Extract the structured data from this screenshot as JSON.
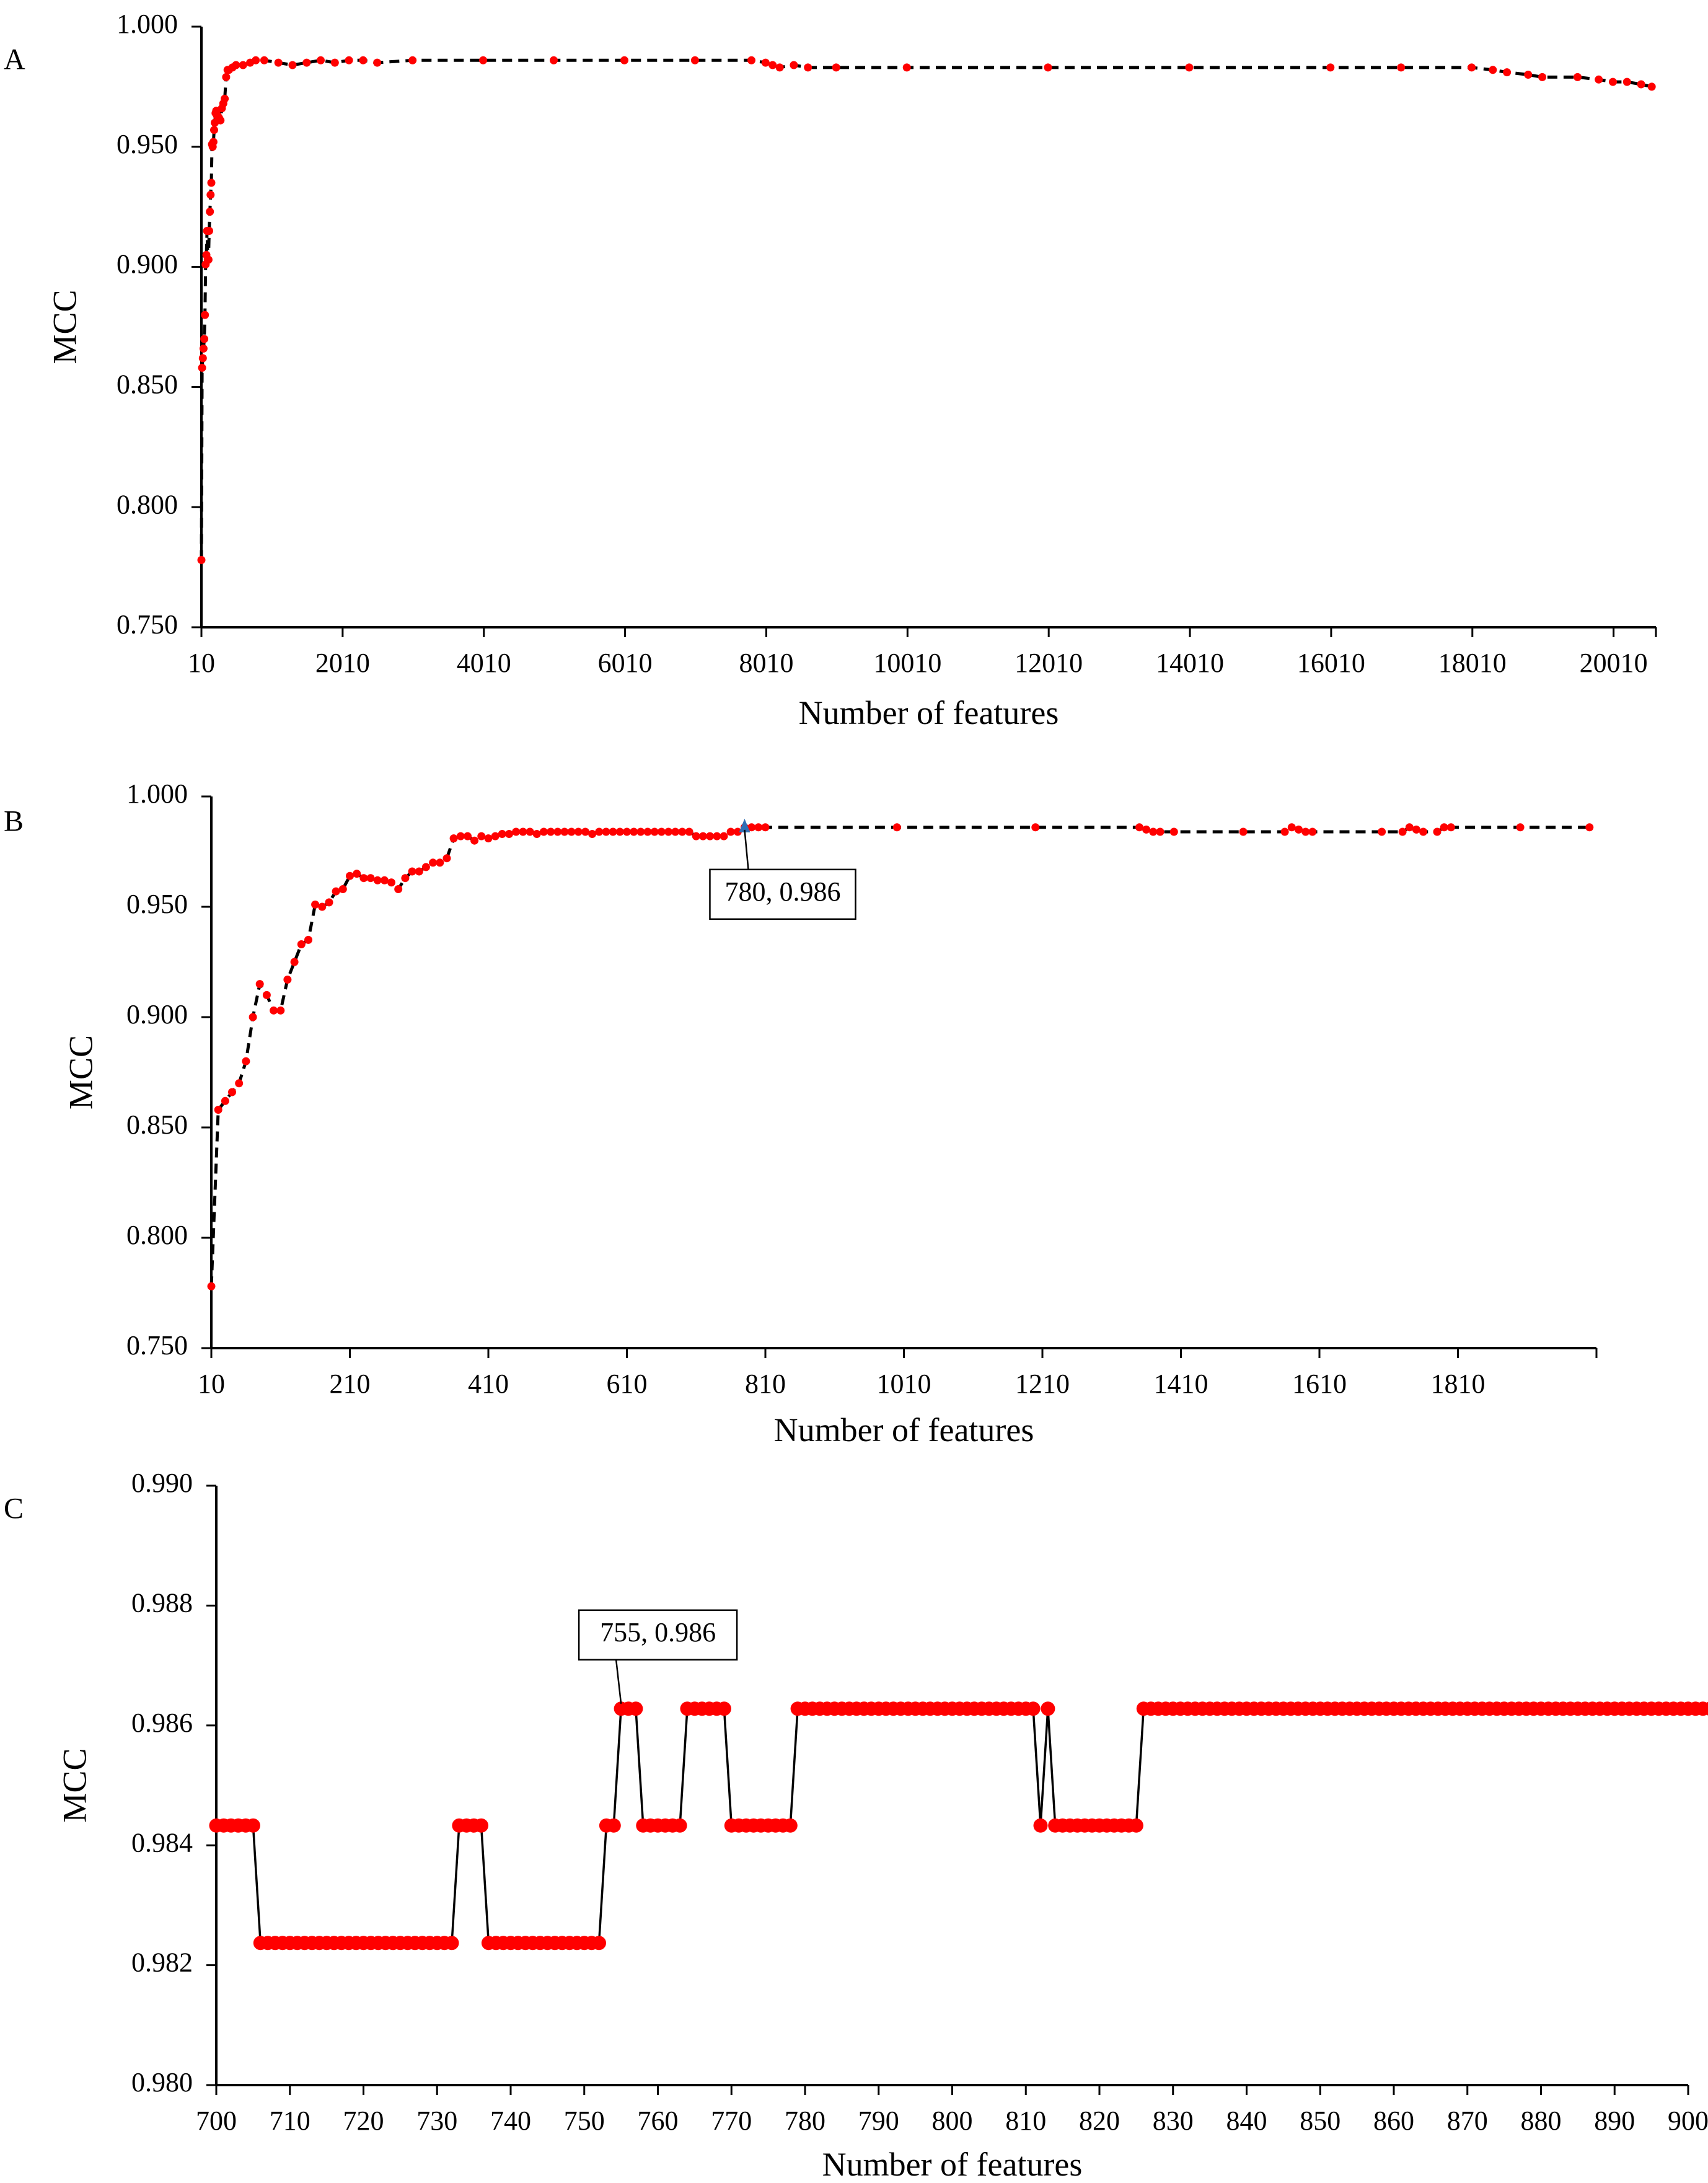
{
  "colors": {
    "points": "#ff0000",
    "line": "#000000",
    "highlight": "#2f6fb5",
    "axis": "#000000"
  },
  "chart_data": [
    {
      "panel": "A",
      "type": "line",
      "marker": "circle",
      "line_style": "dashed",
      "xlabel": "Number of features",
      "ylabel": "MCC",
      "xlim": [
        10,
        20610
      ],
      "ylim": [
        0.75,
        1.0
      ],
      "xticks": [
        10,
        2010,
        4010,
        6010,
        8010,
        10010,
        12010,
        14010,
        16010,
        18010,
        20010
      ],
      "xtick_labels": [
        "10",
        "2010",
        "4010",
        "6010",
        "8010",
        "10010",
        "12010",
        "14010",
        "16010",
        "18010",
        "20010"
      ],
      "yticks": [
        0.75,
        0.8,
        0.85,
        0.9,
        0.95,
        1.0
      ],
      "ytick_labels": [
        "0.750",
        "0.800",
        "0.850",
        "0.900",
        "0.950",
        "1.000"
      ],
      "grid": false,
      "series": [
        {
          "x": [
            10,
            20,
            30,
            40,
            50,
            60,
            70,
            80,
            90,
            100,
            110,
            120,
            130,
            140,
            150,
            160,
            170,
            180,
            190,
            200,
            210,
            220,
            230,
            240,
            250,
            260,
            280,
            300,
            320,
            340,
            360,
            380,
            400,
            450,
            500,
            600,
            700,
            780,
            900,
            1100,
            1300,
            1500,
            1700,
            1900,
            2100,
            2300,
            2500,
            3000,
            4000,
            5000,
            6000,
            7000,
            7800,
            8000,
            8100,
            8200,
            8400,
            8600,
            9000,
            10000,
            12000,
            14000,
            16000,
            17000,
            18000,
            18300,
            18500,
            18800,
            19000,
            19500,
            19800,
            20000,
            20200,
            20400,
            20550
          ],
          "y": [
            0.778,
            0.858,
            0.862,
            0.866,
            0.87,
            0.88,
            0.901,
            0.905,
            0.915,
            0.903,
            0.903,
            0.915,
            0.923,
            0.93,
            0.935,
            0.951,
            0.95,
            0.952,
            0.957,
            0.96,
            0.964,
            0.965,
            0.963,
            0.963,
            0.962,
            0.962,
            0.961,
            0.966,
            0.968,
            0.97,
            0.979,
            0.982,
            0.982,
            0.983,
            0.984,
            0.984,
            0.985,
            0.986,
            0.986,
            0.985,
            0.984,
            0.985,
            0.986,
            0.985,
            0.986,
            0.986,
            0.985,
            0.986,
            0.986,
            0.986,
            0.986,
            0.986,
            0.986,
            0.985,
            0.984,
            0.983,
            0.984,
            0.983,
            0.983,
            0.983,
            0.983,
            0.983,
            0.983,
            0.983,
            0.983,
            0.982,
            0.981,
            0.98,
            0.979,
            0.979,
            0.978,
            0.977,
            0.977,
            0.976,
            0.975
          ]
        }
      ]
    },
    {
      "panel": "B",
      "type": "line",
      "marker": "circle",
      "line_style": "dashed",
      "xlabel": "Number of features",
      "ylabel": "MCC",
      "xlim": [
        10,
        2010
      ],
      "ylim": [
        0.75,
        1.0
      ],
      "xticks": [
        10,
        210,
        410,
        610,
        810,
        1010,
        1210,
        1410,
        1610,
        1810
      ],
      "xtick_labels": [
        "10",
        "210",
        "410",
        "610",
        "810",
        "1010",
        "1210",
        "1410",
        "1610",
        "1810"
      ],
      "yticks": [
        0.75,
        0.8,
        0.85,
        0.9,
        0.95,
        1.0
      ],
      "ytick_labels": [
        "0.750",
        "0.800",
        "0.850",
        "0.900",
        "0.950",
        "1.000"
      ],
      "grid": false,
      "callout": {
        "x": 780,
        "y": 0.986,
        "label": "780, 0.986"
      },
      "series": [
        {
          "x": [
            10,
            20,
            30,
            40,
            50,
            60,
            70,
            80,
            90,
            100,
            110,
            120,
            130,
            140,
            150,
            160,
            170,
            180,
            190,
            200,
            210,
            220,
            230,
            240,
            250,
            260,
            270,
            280,
            290,
            300,
            310,
            320,
            330,
            340,
            350,
            360,
            370,
            380,
            390,
            400,
            410,
            420,
            430,
            440,
            450,
            460,
            470,
            480,
            490,
            500,
            510,
            520,
            530,
            540,
            550,
            560,
            570,
            580,
            590,
            600,
            610,
            620,
            630,
            640,
            650,
            660,
            670,
            680,
            690,
            700,
            710,
            720,
            730,
            740,
            750,
            760,
            770,
            780,
            790,
            800,
            810,
            1000,
            1200,
            1350,
            1360,
            1370,
            1380,
            1400,
            1500,
            1560,
            1570,
            1580,
            1590,
            1600,
            1700,
            1730,
            1740,
            1750,
            1760,
            1780,
            1790,
            1800,
            1900,
            2000
          ],
          "y": [
            0.778,
            0.858,
            0.862,
            0.866,
            0.87,
            0.88,
            0.9,
            0.915,
            0.91,
            0.903,
            0.903,
            0.917,
            0.925,
            0.933,
            0.935,
            0.951,
            0.95,
            0.952,
            0.957,
            0.958,
            0.964,
            0.965,
            0.963,
            0.963,
            0.962,
            0.962,
            0.961,
            0.958,
            0.963,
            0.966,
            0.966,
            0.968,
            0.97,
            0.97,
            0.972,
            0.981,
            0.982,
            0.982,
            0.98,
            0.982,
            0.981,
            0.982,
            0.983,
            0.983,
            0.984,
            0.984,
            0.984,
            0.983,
            0.984,
            0.984,
            0.984,
            0.984,
            0.984,
            0.984,
            0.984,
            0.983,
            0.984,
            0.984,
            0.984,
            0.984,
            0.984,
            0.984,
            0.984,
            0.984,
            0.984,
            0.984,
            0.984,
            0.984,
            0.984,
            0.984,
            0.982,
            0.982,
            0.982,
            0.982,
            0.982,
            0.984,
            0.984,
            0.986,
            0.986,
            0.986,
            0.986,
            0.986,
            0.986,
            0.986,
            0.985,
            0.984,
            0.984,
            0.984,
            0.984,
            0.984,
            0.986,
            0.985,
            0.984,
            0.984,
            0.984,
            0.984,
            0.986,
            0.985,
            0.984,
            0.984,
            0.986,
            0.986,
            0.986,
            0.986
          ]
        }
      ]
    },
    {
      "panel": "C",
      "type": "line",
      "marker": "circle",
      "line_style": "solid",
      "xlabel": "Number of features",
      "ylabel": "MCC",
      "xlim": [
        700,
        900
      ],
      "ylim": [
        0.98,
        0.99
      ],
      "xticks": [
        700,
        710,
        720,
        730,
        740,
        750,
        760,
        770,
        780,
        790,
        800,
        810,
        820,
        830,
        840,
        850,
        860,
        870,
        880,
        890,
        900
      ],
      "xtick_labels": [
        "700",
        "710",
        "720",
        "730",
        "740",
        "750",
        "760",
        "770",
        "780",
        "790",
        "800",
        "810",
        "820",
        "830",
        "840",
        "850",
        "860",
        "870",
        "880",
        "890",
        "900"
      ],
      "yticks": [
        0.98,
        0.982,
        0.984,
        0.986,
        0.988,
        0.99
      ],
      "ytick_labels": [
        "0.980",
        "0.982",
        "0.984",
        "0.986",
        "0.988",
        "0.990"
      ],
      "grid": false,
      "callout": {
        "x": 755,
        "y": 0.9863,
        "label": "755, 0.986"
      },
      "series": [
        {
          "x_start": 700,
          "x_step": 1,
          "y": [
            0.98433,
            0.98433,
            0.98433,
            0.98433,
            0.98433,
            0.98433,
            0.98237,
            0.98237,
            0.98237,
            0.98237,
            0.98237,
            0.98237,
            0.98237,
            0.98237,
            0.98237,
            0.98237,
            0.98237,
            0.98237,
            0.98237,
            0.98237,
            0.98237,
            0.98237,
            0.98237,
            0.98237,
            0.98237,
            0.98237,
            0.98237,
            0.98237,
            0.98237,
            0.98237,
            0.98237,
            0.98237,
            0.98237,
            0.98433,
            0.98433,
            0.98433,
            0.98433,
            0.98237,
            0.98237,
            0.98237,
            0.98237,
            0.98237,
            0.98237,
            0.98237,
            0.98237,
            0.98237,
            0.98237,
            0.98237,
            0.98237,
            0.98237,
            0.98237,
            0.98237,
            0.98237,
            0.98433,
            0.98433,
            0.98628,
            0.98628,
            0.98628,
            0.98433,
            0.98433,
            0.98433,
            0.98433,
            0.98433,
            0.98433,
            0.98628,
            0.98628,
            0.98628,
            0.98628,
            0.98628,
            0.98628,
            0.98433,
            0.98433,
            0.98433,
            0.98433,
            0.98433,
            0.98433,
            0.98433,
            0.98433,
            0.98433,
            0.98628,
            0.98628,
            0.98628,
            0.98628,
            0.98628,
            0.98628,
            0.98628,
            0.98628,
            0.98628,
            0.98628,
            0.98628,
            0.98628,
            0.98628,
            0.98628,
            0.98628,
            0.98628,
            0.98628,
            0.98628,
            0.98628,
            0.98628,
            0.98628,
            0.98628,
            0.98628,
            0.98628,
            0.98628,
            0.98628,
            0.98628,
            0.98628,
            0.98628,
            0.98628,
            0.98628,
            0.98628,
            0.98628,
            0.98433,
            0.98628,
            0.98433,
            0.98433,
            0.98433,
            0.98433,
            0.98433,
            0.98433,
            0.98433,
            0.98433,
            0.98433,
            0.98433,
            0.98433,
            0.98433,
            0.98628,
            0.98628,
            0.98628,
            0.98628,
            0.98628,
            0.98628,
            0.98628,
            0.98628,
            0.98628,
            0.98628,
            0.98628,
            0.98628,
            0.98628,
            0.98628,
            0.98628,
            0.98628,
            0.98628,
            0.98628,
            0.98628,
            0.98628,
            0.98628,
            0.98628,
            0.98628,
            0.98628,
            0.98628,
            0.98628,
            0.98628,
            0.98628,
            0.98628,
            0.98628,
            0.98628,
            0.98628,
            0.98628,
            0.98628,
            0.98628,
            0.98628,
            0.98628,
            0.98628,
            0.98628,
            0.98628,
            0.98628,
            0.98628,
            0.98628,
            0.98628,
            0.98628,
            0.98628,
            0.98628,
            0.98628,
            0.98628,
            0.98628,
            0.98628,
            0.98628,
            0.98628,
            0.98628,
            0.98628,
            0.98628,
            0.98628,
            0.98628,
            0.98628,
            0.98628,
            0.98628,
            0.98628,
            0.98628,
            0.98628,
            0.98628,
            0.98628,
            0.98628,
            0.98628,
            0.98628,
            0.98628,
            0.98628,
            0.98628,
            0.98628,
            0.98628,
            0.98628,
            0.98628,
            0.98628,
            0.98628,
            0.98628,
            0.98628,
            0.98628
          ]
        }
      ]
    }
  ]
}
